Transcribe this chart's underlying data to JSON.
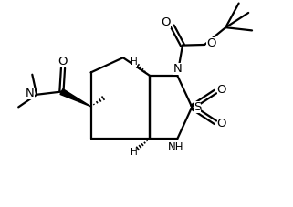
{
  "bg_color": "#ffffff",
  "line_color": "#000000",
  "line_width": 1.6,
  "font_size": 8.5,
  "figsize": [
    3.21,
    2.27
  ],
  "dpi": 100,
  "xlim": [
    0,
    10
  ],
  "ylim": [
    0,
    7
  ]
}
